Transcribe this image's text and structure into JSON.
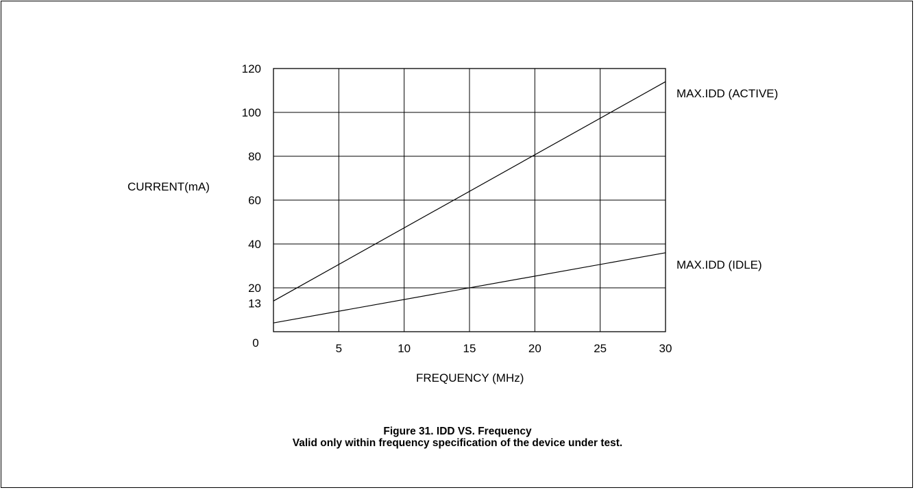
{
  "chart_data": {
    "type": "line",
    "xlabel": "FREQUENCY (MHz)",
    "ylabel": "CURRENT(mA)",
    "xlim": [
      0,
      30
    ],
    "ylim": [
      0,
      120
    ],
    "x_ticks": [
      5,
      10,
      15,
      20,
      25,
      30
    ],
    "y_ticks": [
      120,
      100,
      80,
      60,
      40,
      20,
      13
    ],
    "origin_label": "0",
    "grid": true,
    "series": [
      {
        "name": "MAX.IDD (ACTIVE)",
        "x": [
          0,
          30
        ],
        "y": [
          14,
          114
        ]
      },
      {
        "name": "MAX.IDD (IDLE)",
        "x": [
          0,
          30
        ],
        "y": [
          4,
          36
        ]
      }
    ]
  },
  "caption": {
    "title": "Figure 31. IDD VS. Frequency",
    "note": "Valid only within frequency specification of the device under test."
  }
}
